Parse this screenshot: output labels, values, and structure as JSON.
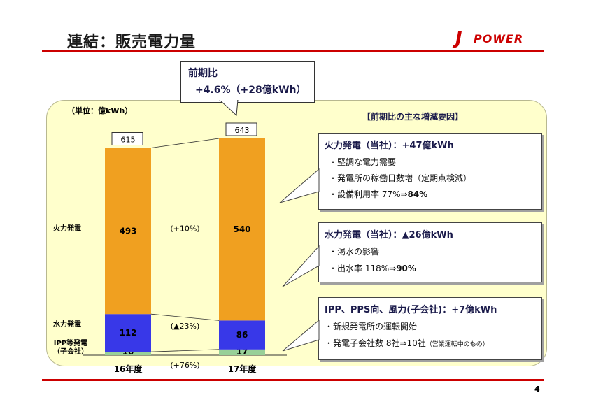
{
  "page": {
    "title": "連結：販売電力量",
    "page_number": "4"
  },
  "logo": {
    "mark": "J",
    "text": "POWER"
  },
  "callout": {
    "line1": "前期比",
    "line2": "+4.6%（+28億kWh）"
  },
  "unit_label": "（単位：億kWh）",
  "row_labels": {
    "thermal": "火力発電",
    "hydro": "水力発電",
    "ipp_line1": "IPP等発電",
    "ipp_line2": "（子会社）"
  },
  "factors": {
    "heading": "【前期比の主な増減要因】",
    "thermal": {
      "title": "火力発電（当社）：+47億kWh",
      "items": [
        "・堅調な電力需要",
        "・発電所の稼働日数増（定期点検減）"
      ],
      "rate_prefix": "・設備利用率 77%⇒",
      "rate_value": "84%"
    },
    "hydro": {
      "title": "水力発電（当社）：▲26億kWh",
      "items": [
        "・渇水の影響"
      ],
      "rate_prefix": "・出水率 118%⇒",
      "rate_value": "90%"
    },
    "ipp": {
      "title": "IPP、PPS向、風力(子会社)：+7億kWh",
      "items": [
        "・新規発電所の運転開始"
      ],
      "count_prefix": "・発電子会社数 8社⇒10社",
      "count_note": "（営業運転中のもの）"
    }
  },
  "colors": {
    "thermal": "#f0a020",
    "hydro": "#3838e8",
    "ipp": "#98d098",
    "panel": "#ffffcc",
    "rule": "#cc0000"
  },
  "chart_data": {
    "type": "bar",
    "stacked": true,
    "categories": [
      "16年度",
      "17年度"
    ],
    "series": [
      {
        "name": "IPP等発電（子会社）",
        "values": [
          10,
          17
        ]
      },
      {
        "name": "水力発電",
        "values": [
          112,
          86
        ]
      },
      {
        "name": "火力発電",
        "values": [
          493,
          540
        ]
      }
    ],
    "totals": [
      "615",
      "643"
    ],
    "changes": [
      "(+10%)",
      "(▲23%)",
      "(+76%)"
    ],
    "ylabel": "（単位：億kWh）",
    "ylim": [
      0,
      643
    ]
  }
}
